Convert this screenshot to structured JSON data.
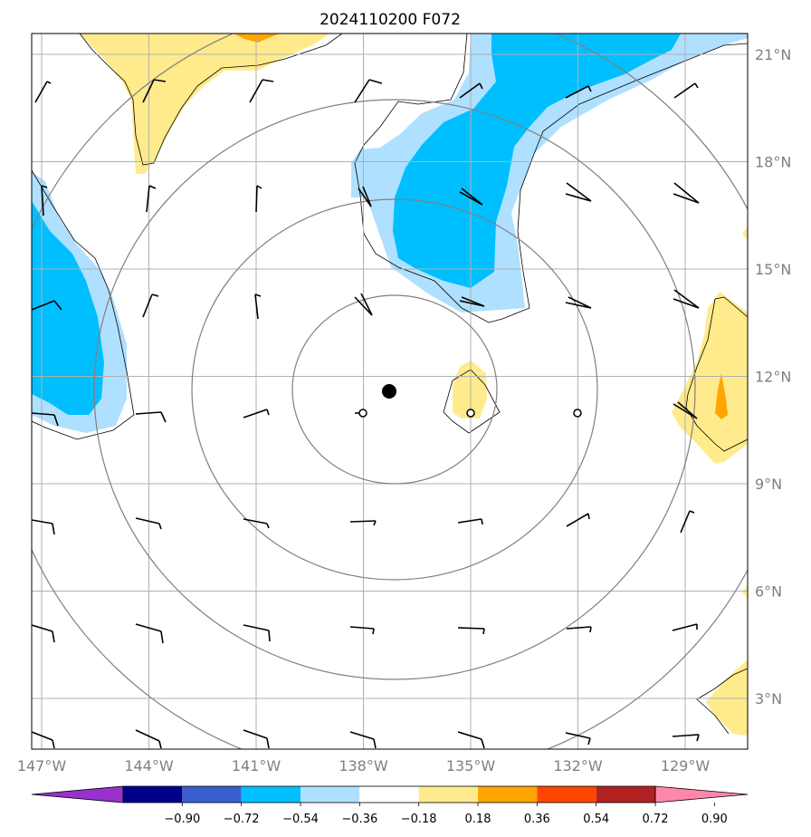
{
  "title": "2024110200 F072",
  "map": {
    "lon_range": [
      -147.2,
      -127.2
    ],
    "lat_range": [
      1.7,
      21.6
    ],
    "lon_ticks": [
      {
        "value": -147,
        "label": "147°W"
      },
      {
        "value": -144,
        "label": "144°W"
      },
      {
        "value": -141,
        "label": "141°W"
      },
      {
        "value": -138,
        "label": "138°W"
      },
      {
        "value": -135,
        "label": "135°W"
      },
      {
        "value": -132,
        "label": "132°W"
      },
      {
        "value": -129,
        "label": "129°W"
      }
    ],
    "lat_ticks": [
      {
        "value": 3,
        "label": "3°N"
      },
      {
        "value": 6,
        "label": "6°N"
      },
      {
        "value": 9,
        "label": "9°N"
      },
      {
        "value": 12,
        "label": "12°N"
      },
      {
        "value": 15,
        "label": "15°N"
      },
      {
        "value": 18,
        "label": "18°N"
      },
      {
        "value": 21,
        "label": "21°N"
      }
    ],
    "grid": true,
    "storm_center": {
      "lon": -137.3,
      "lat": 11.6
    },
    "range_ring_radii_deg": [
      3,
      6,
      9,
      12
    ],
    "reference_points": [
      {
        "lon": -138,
        "lat": 11
      },
      {
        "lon": -135,
        "lat": 11
      },
      {
        "lon": -132,
        "lat": 11
      }
    ]
  },
  "colorbar": {
    "ticks": [
      "−0.90",
      "−0.72",
      "−0.54",
      "−0.36",
      "−0.18",
      "0.18",
      "0.36",
      "0.54",
      "0.72",
      "0.90"
    ],
    "colors": [
      "#9932cc",
      "#00008b",
      "#3a5fcd",
      "#00bfff",
      "#b0e0ff",
      "#ffffff",
      "#ffeb8c",
      "#ffa500",
      "#ff4500",
      "#b22222",
      "#ff88aa"
    ]
  },
  "colors": {
    "blue_dark": "#00bfff",
    "blue_light": "#b0e0ff",
    "yellow": "#ffeb8c",
    "orange": "#ffa500",
    "grid": "#b0b0b0",
    "rings": "#808080"
  }
}
